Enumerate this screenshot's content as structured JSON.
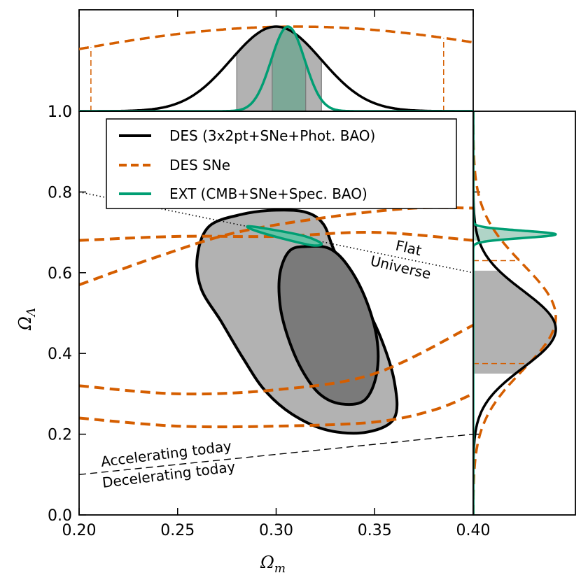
{
  "chart_data": {
    "type": "line",
    "xlabel": "Ω_m",
    "xlabel_main": "Ω",
    "xlabel_sub": "m",
    "ylabel": "Ω_Λ",
    "ylabel_main": "Ω",
    "ylabel_sub": "Λ",
    "xlim": [
      0.2,
      0.4
    ],
    "ylim": [
      0.0,
      1.0
    ],
    "x_ticks": [
      0.2,
      0.25,
      0.3,
      0.35,
      0.4
    ],
    "x_tick_labels": [
      "0.20",
      "0.25",
      "0.30",
      "0.35",
      "0.40"
    ],
    "y_ticks": [
      0.0,
      0.2,
      0.4,
      0.6,
      0.8,
      1.0
    ],
    "y_tick_labels": [
      "0.0",
      "0.2",
      "0.4",
      "0.6",
      "0.8",
      "1.0"
    ],
    "legend_position": "top",
    "legend": [
      {
        "label": "DES (3x2pt+SNe+Phot. BAO)",
        "color": "#000000",
        "style": "solid"
      },
      {
        "label": "DES SNe",
        "color": "#d55e00",
        "style": "dashed"
      },
      {
        "label": "EXT (CMB+SNe+Spec. BAO)",
        "color": "#009e73",
        "style": "solid"
      }
    ],
    "annotations": {
      "flat_line1": "Flat",
      "flat_line2": "Universe",
      "accel": "Accelerating today",
      "decel": "Decelerating today"
    },
    "reference_lines": {
      "flat": {
        "points": [
          [
            0.2,
            0.8
          ],
          [
            0.4,
            0.6
          ]
        ],
        "style": "dotted"
      },
      "acceleration": {
        "points": [
          [
            0.2,
            0.1
          ],
          [
            0.4,
            0.2
          ]
        ],
        "style": "dashed"
      }
    },
    "series": [
      {
        "name": "DES (3x2pt+SNe+Phot. BAO)",
        "contour": "outer",
        "points": [
          [
            0.315,
            0.75
          ],
          [
            0.3,
            0.755
          ],
          [
            0.283,
            0.745
          ],
          [
            0.266,
            0.715
          ],
          [
            0.26,
            0.64
          ],
          [
            0.262,
            0.56
          ],
          [
            0.272,
            0.48
          ],
          [
            0.283,
            0.39
          ],
          [
            0.294,
            0.31
          ],
          [
            0.308,
            0.25
          ],
          [
            0.326,
            0.21
          ],
          [
            0.346,
            0.205
          ],
          [
            0.36,
            0.24
          ],
          [
            0.36,
            0.33
          ],
          [
            0.353,
            0.44
          ],
          [
            0.342,
            0.55
          ],
          [
            0.33,
            0.65
          ],
          [
            0.324,
            0.72
          ]
        ]
      },
      {
        "name": "DES (3x2pt+SNe+Phot. BAO)",
        "contour": "inner",
        "points": [
          [
            0.316,
            0.665
          ],
          [
            0.307,
            0.655
          ],
          [
            0.302,
            0.6
          ],
          [
            0.302,
            0.52
          ],
          [
            0.306,
            0.44
          ],
          [
            0.313,
            0.36
          ],
          [
            0.322,
            0.3
          ],
          [
            0.333,
            0.275
          ],
          [
            0.345,
            0.285
          ],
          [
            0.351,
            0.35
          ],
          [
            0.351,
            0.44
          ],
          [
            0.345,
            0.54
          ],
          [
            0.336,
            0.62
          ],
          [
            0.327,
            0.66
          ]
        ]
      },
      {
        "name": "DES SNe",
        "contour": "inner",
        "points": [
          [
            0.2,
            0.68
          ],
          [
            0.25,
            0.69
          ],
          [
            0.3,
            0.69
          ],
          [
            0.35,
            0.7
          ],
          [
            0.4,
            0.68
          ]
        ]
      },
      {
        "name": "DES SNe",
        "contour": "inner",
        "points": [
          [
            0.2,
            0.32
          ],
          [
            0.25,
            0.3
          ],
          [
            0.3,
            0.31
          ],
          [
            0.35,
            0.35
          ],
          [
            0.4,
            0.47
          ]
        ]
      },
      {
        "name": "DES SNe",
        "contour": "outer",
        "points": [
          [
            0.2,
            0.57
          ],
          [
            0.24,
            0.64
          ],
          [
            0.28,
            0.7
          ],
          [
            0.33,
            0.74
          ],
          [
            0.37,
            0.76
          ],
          [
            0.4,
            0.76
          ]
        ]
      },
      {
        "name": "DES SNe",
        "contour": "outer",
        "points": [
          [
            0.2,
            0.24
          ],
          [
            0.25,
            0.22
          ],
          [
            0.3,
            0.22
          ],
          [
            0.35,
            0.23
          ],
          [
            0.38,
            0.26
          ],
          [
            0.4,
            0.3
          ]
        ]
      },
      {
        "name": "EXT (CMB+SNe+Spec. BAO)",
        "contour": "inner",
        "points": [
          [
            0.286,
            0.715
          ],
          [
            0.3,
            0.705
          ],
          [
            0.315,
            0.69
          ],
          [
            0.323,
            0.672
          ],
          [
            0.318,
            0.668
          ],
          [
            0.303,
            0.685
          ],
          [
            0.289,
            0.705
          ]
        ]
      }
    ],
    "marginal_omega_m": {
      "des": {
        "mean": 0.3,
        "sigma": 0.023,
        "region68": [
          0.28,
          0.323
        ]
      },
      "ext": {
        "mean": 0.306,
        "sigma": 0.0085,
        "region68": [
          0.298,
          0.315
        ]
      },
      "des_sne": {
        "mean": 0.31,
        "sigma": 0.14,
        "region68": [
          0.206,
          0.385
        ]
      }
    },
    "marginal_omega_lambda": {
      "des": {
        "mean": 0.46,
        "sigma": 0.095,
        "region68": [
          0.35,
          0.605
        ]
      },
      "ext": {
        "mean": 0.695,
        "sigma": 0.009,
        "region68": [
          0.68,
          0.71
        ]
      },
      "des_sne": {
        "mean": 0.49,
        "sigma": 0.13,
        "region68": [
          0.375,
          0.63
        ]
      }
    }
  }
}
